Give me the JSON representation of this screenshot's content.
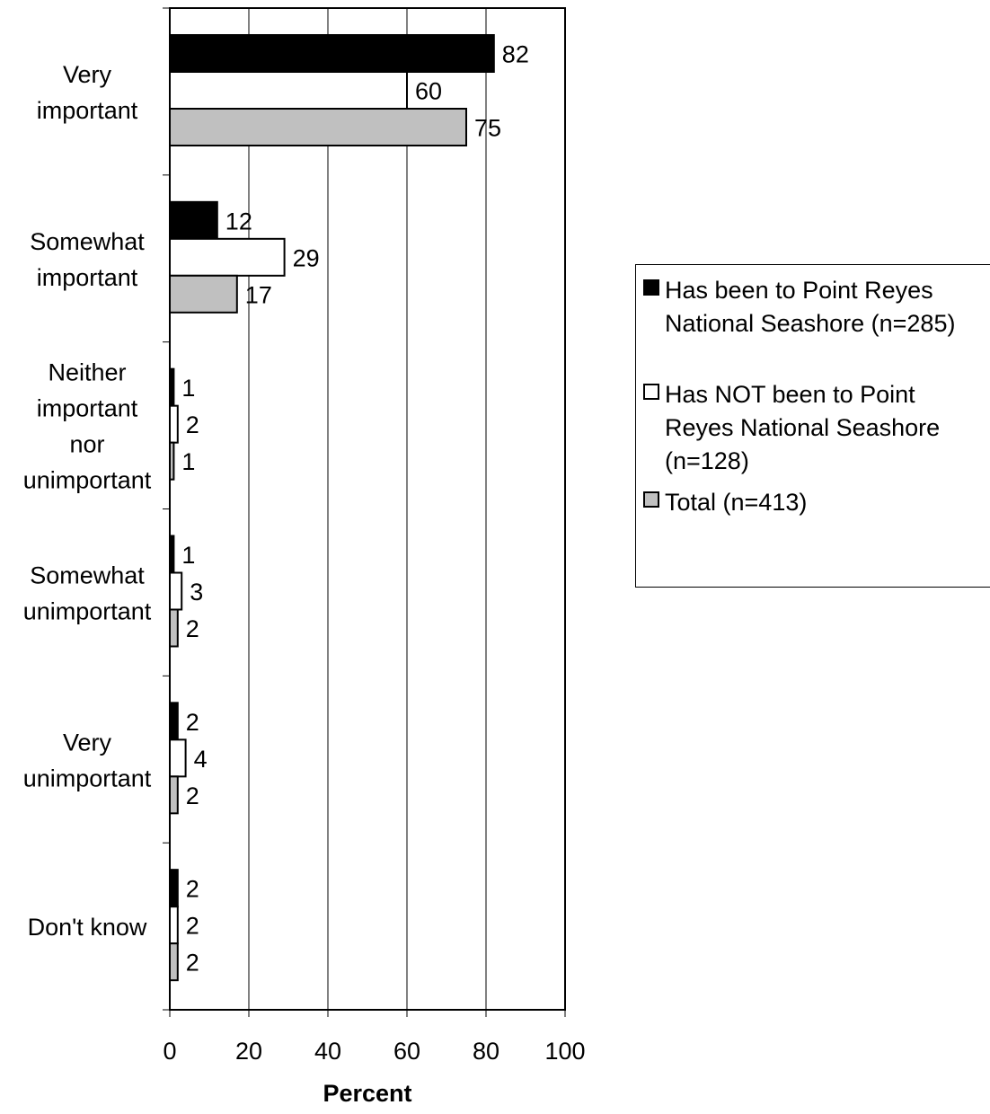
{
  "chart_data": {
    "type": "bar",
    "orientation": "horizontal",
    "categories": [
      [
        "Very",
        "important"
      ],
      [
        "Somewhat",
        "important"
      ],
      [
        "Neither",
        "important",
        "nor",
        "unimportant"
      ],
      [
        "Somewhat",
        "unimportant"
      ],
      [
        "Very",
        "unimportant"
      ],
      [
        "Don't know"
      ]
    ],
    "series": [
      {
        "name": "Has been to Point Reyes National Seashore (n=285)",
        "color": "#000000",
        "values": [
          82,
          12,
          1,
          1,
          2,
          2
        ]
      },
      {
        "name": "Has NOT been to Point Reyes National Seashore (n=128)",
        "color": "#ffffff",
        "values": [
          60,
          29,
          2,
          3,
          4,
          2
        ]
      },
      {
        "name": "Total (n=413)",
        "color": "#c0c0c0",
        "values": [
          75,
          17,
          1,
          2,
          2,
          2
        ]
      }
    ],
    "data_labels": [
      [
        "82",
        "12",
        "1",
        "1",
        "2",
        "2"
      ],
      [
        "60",
        "29",
        "2",
        "3",
        "4",
        "2"
      ],
      [
        "75",
        "17",
        "1",
        "2",
        "2",
        "2"
      ]
    ],
    "xlabel": "Percent",
    "xlim": [
      0,
      100
    ],
    "xticks": [
      "0",
      "20",
      "40",
      "60",
      "80",
      "100"
    ],
    "grid": "vertical",
    "legend": "right"
  },
  "legend": {
    "item1_lines": [
      "Has been to Point Reyes",
      "National Seashore (n=285)"
    ],
    "item2_lines": [
      "Has NOT been to Point",
      "Reyes National Seashore",
      "(n=128)"
    ],
    "item3_lines": [
      "Total (n=413)"
    ]
  }
}
